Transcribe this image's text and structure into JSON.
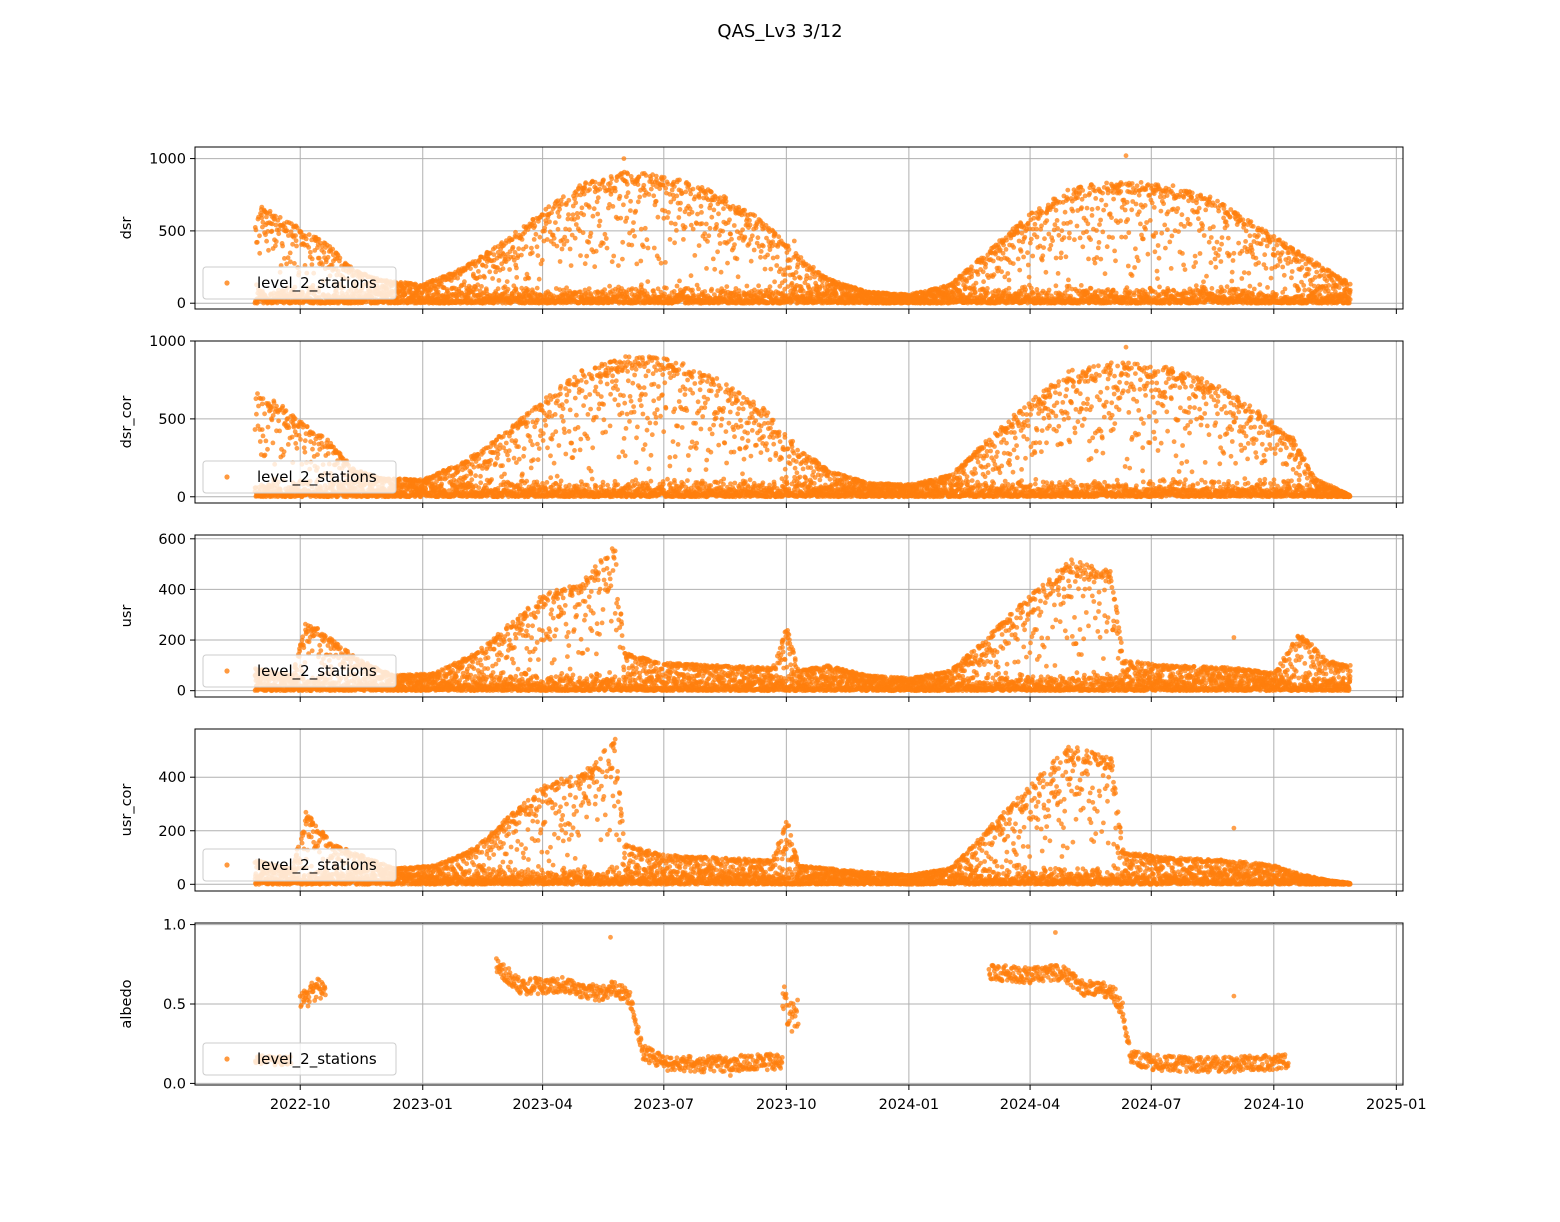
{
  "figure": {
    "title": "QAS_Lv3 3/12"
  },
  "colors": {
    "series": "#ff7f0e",
    "grid": "#b0b0b0",
    "legend_border": "#cccccc"
  },
  "x_axis": {
    "type": "date",
    "range": [
      "2022-07-14",
      "2025-01-06"
    ],
    "ticks": [
      "2022-10",
      "2023-01",
      "2023-04",
      "2023-07",
      "2023-10",
      "2024-01",
      "2024-04",
      "2024-07",
      "2024-10",
      "2025-01"
    ]
  },
  "chart_data": [
    {
      "type": "scatter",
      "ylabel": "dsr",
      "ylim": [
        -40,
        1080
      ],
      "yticks": [
        "0",
        "500",
        "1000"
      ],
      "grid": true,
      "legend": "lower-left",
      "series": [
        {
          "name": "level_2_stations",
          "color": "#ff7f0e",
          "envelope": {
            "x": [
              "2022-08-28",
              "2022-09-15",
              "2022-10-01",
              "2022-10-20",
              "2022-11-10",
              "2022-12-01",
              "2023-01-01",
              "2023-02-01",
              "2023-03-01",
              "2023-04-01",
              "2023-05-01",
              "2023-06-01",
              "2023-06-20",
              "2023-07-15",
              "2023-08-15",
              "2023-09-15",
              "2023-10-10",
              "2023-11-01",
              "2023-12-01",
              "2024-01-01",
              "2024-02-01",
              "2024-03-01",
              "2024-04-01",
              "2024-05-01",
              "2024-06-01",
              "2024-06-20",
              "2024-07-15",
              "2024-08-15",
              "2024-09-15",
              "2024-10-15",
              "2024-11-27"
            ],
            "y": [
              700,
              600,
              520,
              420,
              230,
              160,
              130,
              250,
              420,
              640,
              830,
              910,
              900,
              860,
              740,
              560,
              330,
              170,
              80,
              60,
              130,
              370,
              620,
              800,
              840,
              850,
              820,
              740,
              560,
              380,
              140
            ]
          },
          "outliers": [
            {
              "x": "2023-06-01",
              "y": 1000
            },
            {
              "x": "2024-06-12",
              "y": 1020
            },
            {
              "x": "2023-10-07",
              "y": 430
            }
          ]
        }
      ]
    },
    {
      "type": "scatter",
      "ylabel": "dsr_cor",
      "ylim": [
        -40,
        1000
      ],
      "yticks": [
        "0",
        "500",
        "1000"
      ],
      "grid": true,
      "legend": "lower-left",
      "series": [
        {
          "name": "level_2_stations",
          "color": "#ff7f0e",
          "envelope": {
            "x": [
              "2022-08-28",
              "2022-09-15",
              "2022-10-01",
              "2022-10-20",
              "2022-11-10",
              "2022-12-01",
              "2023-01-01",
              "2023-02-01",
              "2023-03-01",
              "2023-04-01",
              "2023-05-01",
              "2023-06-01",
              "2023-06-20",
              "2023-07-15",
              "2023-08-15",
              "2023-09-15",
              "2023-10-10",
              "2023-11-01",
              "2023-12-01",
              "2024-01-01",
              "2024-02-01",
              "2024-03-01",
              "2024-04-01",
              "2024-05-01",
              "2024-06-01",
              "2024-06-20",
              "2024-07-15",
              "2024-08-15",
              "2024-09-15",
              "2024-10-15",
              "2024-11-01",
              "2024-11-27"
            ],
            "y": [
              680,
              600,
              490,
              380,
              180,
              120,
              110,
              230,
              400,
              620,
              820,
              900,
              910,
              860,
              740,
              560,
              320,
              170,
              90,
              80,
              140,
              380,
              620,
              810,
              860,
              860,
              830,
              740,
              580,
              380,
              120,
              10
            ]
          },
          "outliers": [
            {
              "x": "2024-06-12",
              "y": 960
            }
          ]
        }
      ]
    },
    {
      "type": "scatter",
      "ylabel": "usr",
      "ylim": [
        -25,
        615
      ],
      "yticks": [
        "0",
        "200",
        "400",
        "600"
      ],
      "grid": true,
      "legend": "lower-left",
      "series": [
        {
          "name": "level_2_stations",
          "color": "#ff7f0e",
          "envelope": {
            "x": [
              "2022-08-28",
              "2022-09-25",
              "2022-10-05",
              "2022-10-25",
              "2022-11-15",
              "2022-12-10",
              "2023-01-10",
              "2023-02-10",
              "2023-03-10",
              "2023-04-01",
              "2023-05-01",
              "2023-05-25",
              "2023-06-01",
              "2023-07-01",
              "2023-09-20",
              "2023-10-01",
              "2023-10-10",
              "2023-11-01",
              "2023-12-01",
              "2024-01-01",
              "2024-02-01",
              "2024-03-01",
              "2024-04-01",
              "2024-05-01",
              "2024-06-01",
              "2024-06-10",
              "2024-07-15",
              "2024-09-01",
              "2024-10-01",
              "2024-10-20",
              "2024-11-10",
              "2024-11-27"
            ],
            "y": [
              90,
              60,
              280,
              200,
              120,
              60,
              70,
              150,
              280,
              380,
              430,
              590,
              150,
              110,
              90,
              250,
              80,
              100,
              60,
              50,
              80,
              220,
              380,
              520,
              470,
              120,
              100,
              90,
              70,
              230,
              120,
              100
            ]
          },
          "outliers": [
            {
              "x": "2024-09-01",
              "y": 210
            }
          ]
        }
      ]
    },
    {
      "type": "scatter",
      "ylabel": "usr_cor",
      "ylim": [
        -25,
        580
      ],
      "yticks": [
        "0",
        "200",
        "400"
      ],
      "grid": true,
      "legend": "lower-left",
      "series": [
        {
          "name": "level_2_stations",
          "color": "#ff7f0e",
          "envelope": {
            "x": [
              "2022-08-28",
              "2022-09-25",
              "2022-10-05",
              "2022-10-25",
              "2022-11-15",
              "2022-12-10",
              "2023-01-10",
              "2023-02-10",
              "2023-03-10",
              "2023-04-01",
              "2023-05-01",
              "2023-05-25",
              "2023-06-01",
              "2023-07-01",
              "2023-09-20",
              "2023-10-01",
              "2023-10-10",
              "2023-11-01",
              "2023-12-01",
              "2024-01-01",
              "2024-02-01",
              "2024-03-01",
              "2024-04-01",
              "2024-05-01",
              "2024-06-01",
              "2024-06-10",
              "2024-07-15",
              "2024-09-01",
              "2024-10-01",
              "2024-10-20",
              "2024-11-10",
              "2024-11-27"
            ],
            "y": [
              90,
              60,
              270,
              150,
              110,
              60,
              70,
              140,
              270,
              370,
              420,
              560,
              150,
              110,
              90,
              250,
              70,
              60,
              45,
              35,
              60,
              210,
              380,
              520,
              470,
              120,
              100,
              90,
              70,
              40,
              15,
              5
            ]
          },
          "outliers": [
            {
              "x": "2024-09-01",
              "y": 210
            }
          ]
        }
      ]
    },
    {
      "type": "scatter",
      "ylabel": "albedo",
      "ylim": [
        -0.01,
        1.01
      ],
      "yticks": [
        "0.0",
        "0.5",
        "1.0"
      ],
      "grid": true,
      "legend": "lower-left",
      "series": [
        {
          "name": "level_2_stations",
          "color": "#ff7f0e",
          "segments": [
            {
              "x": [
                "2022-08-28",
                "2022-09-10",
                "2022-09-24"
              ],
              "y": [
                0.16,
                0.14,
                0.15
              ],
              "spread": 0.03
            },
            {
              "x": [
                "2022-10-01",
                "2022-10-10",
                "2022-10-20"
              ],
              "y": [
                0.5,
                0.58,
                0.6
              ],
              "spread": 0.07
            },
            {
              "x": [
                "2023-02-25",
                "2023-03-15",
                "2023-04-15",
                "2023-05-15",
                "2023-05-25",
                "2023-06-05",
                "2023-06-15",
                "2023-07-01",
                "2023-08-01",
                "2023-09-01",
                "2023-09-28"
              ],
              "y": [
                0.74,
                0.61,
                0.62,
                0.56,
                0.6,
                0.55,
                0.2,
                0.13,
                0.12,
                0.13,
                0.14
              ],
              "spread": 0.05
            },
            {
              "x": [
                "2023-09-28",
                "2023-10-03",
                "2023-10-10"
              ],
              "y": [
                0.55,
                0.4,
                0.45
              ],
              "spread": 0.1
            },
            {
              "x": [
                "2024-03-01",
                "2024-04-01",
                "2024-04-25",
                "2024-05-10",
                "2024-06-01",
                "2024-06-10",
                "2024-06-15",
                "2024-07-01",
                "2024-08-01",
                "2024-09-01",
                "2024-10-01",
                "2024-10-12"
              ],
              "y": [
                0.7,
                0.68,
                0.7,
                0.6,
                0.59,
                0.45,
                0.16,
                0.13,
                0.12,
                0.12,
                0.13,
                0.14
              ],
              "spread": 0.05
            }
          ],
          "outliers": [
            {
              "x": "2023-05-22",
              "y": 0.92
            },
            {
              "x": "2024-04-20",
              "y": 0.95
            },
            {
              "x": "2024-09-01",
              "y": 0.55
            },
            {
              "x": "2023-08-20",
              "y": 0.05
            }
          ]
        }
      ]
    }
  ]
}
